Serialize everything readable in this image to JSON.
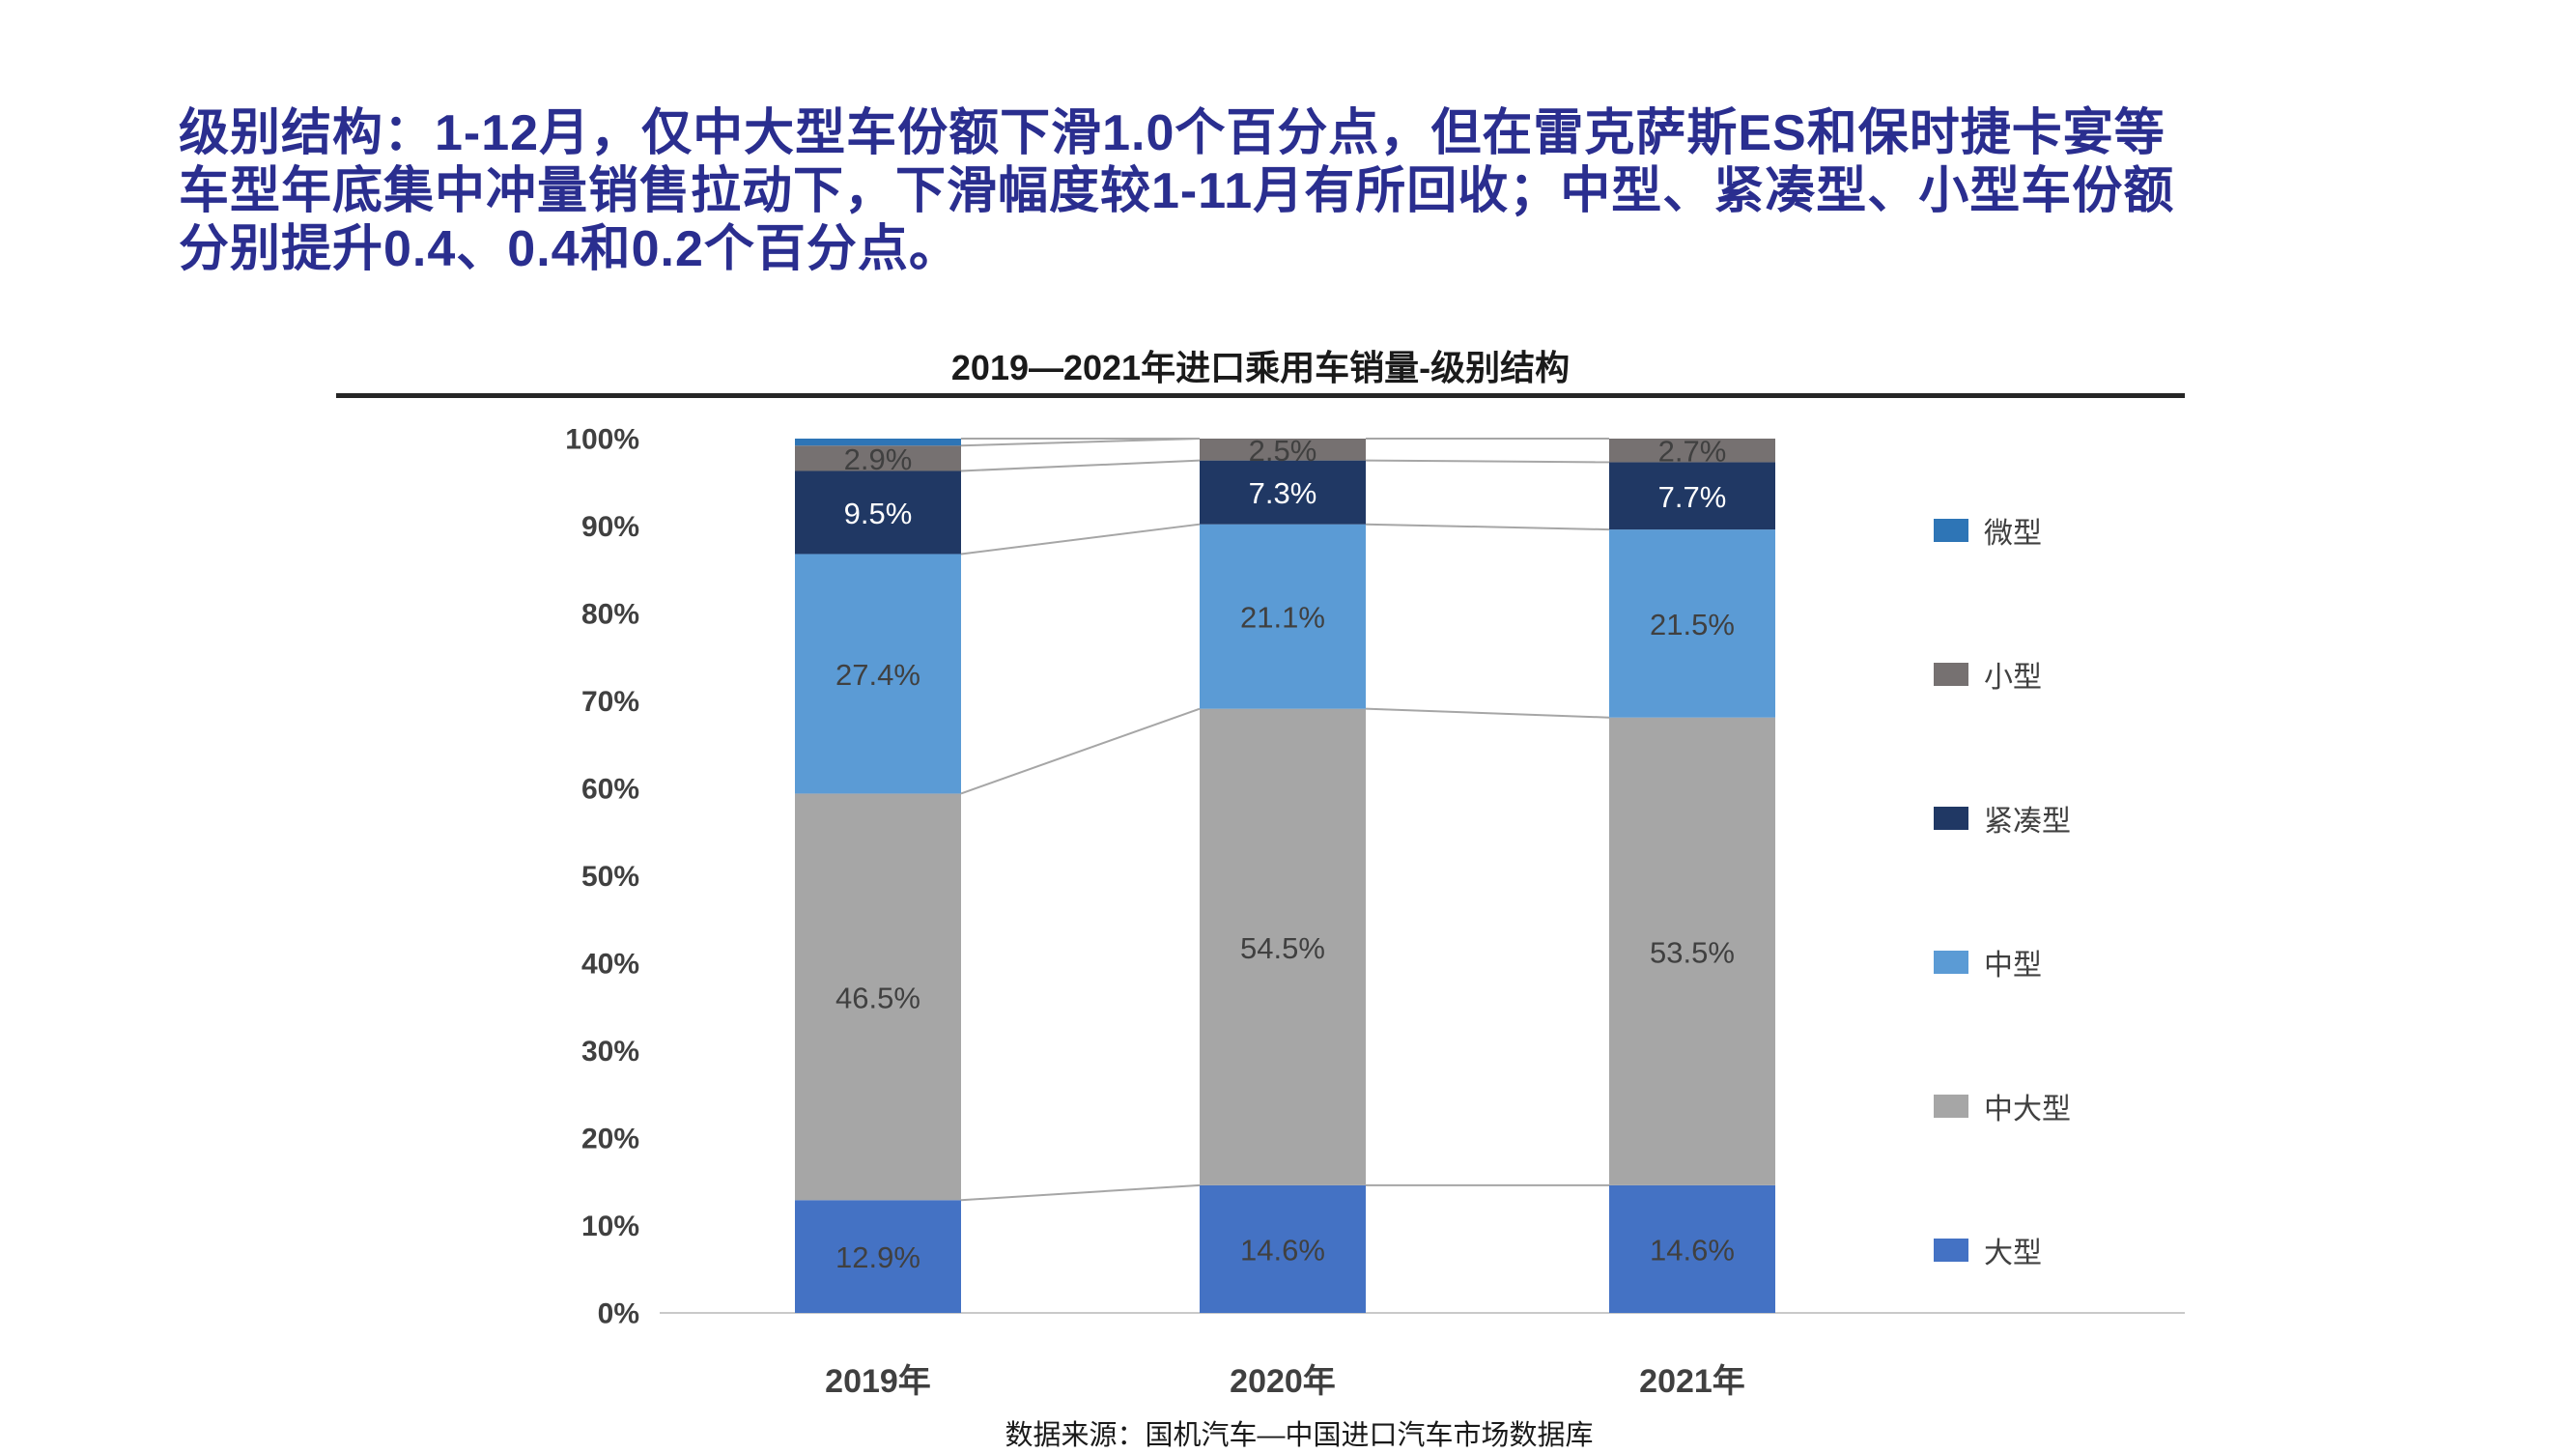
{
  "headline": {
    "lines": [
      "级别结构：1-12月，仅中大型车份额下滑1.0个百分点，但在雷克萨斯ES和保时捷卡宴等",
      "车型年底集中冲量销售拉动下，下滑幅度较1-11月有所回收；中型、紧凑型、小型车份额",
      "分别提升0.4、0.4和0.2个百分点。"
    ],
    "color": "#2A2E8F"
  },
  "source_note": "数据来源：国机汽车—中国进口汽车市场数据库",
  "chart_data": {
    "type": "bar",
    "stacked": true,
    "title": "2019—2021年进口乘用车销量-级别结构",
    "categories": [
      "2019年",
      "2020年",
      "2021年"
    ],
    "series": [
      {
        "name": "大型",
        "color": "#4472C4",
        "values": [
          12.9,
          14.6,
          14.6
        ],
        "labels": [
          "12.9%",
          "14.6%",
          "14.6%"
        ],
        "label_color": "#404040"
      },
      {
        "name": "中大型",
        "color": "#A6A6A6",
        "values": [
          46.5,
          54.5,
          53.5
        ],
        "labels": [
          "46.5%",
          "54.5%",
          "53.5%"
        ],
        "label_color": "#404040"
      },
      {
        "name": "中型",
        "color": "#5B9BD5",
        "values": [
          27.4,
          21.1,
          21.5
        ],
        "labels": [
          "27.4%",
          "21.1%",
          "21.5%"
        ],
        "label_color": "#404040"
      },
      {
        "name": "紧凑型",
        "color": "#203864",
        "values": [
          9.5,
          7.3,
          7.7
        ],
        "labels": [
          "9.5%",
          "7.3%",
          "7.7%"
        ],
        "label_color": "#FFFFFF"
      },
      {
        "name": "小型",
        "color": "#767171",
        "values": [
          2.9,
          2.5,
          2.7
        ],
        "labels": [
          "2.9%",
          "2.5%",
          "2.7%"
        ],
        "label_color": "#404040"
      },
      {
        "name": "微型",
        "color": "#2E75B6",
        "values": [
          0.8,
          0.0,
          0.0
        ],
        "labels": [
          "",
          "",
          ""
        ],
        "label_color": "#404040"
      }
    ],
    "legend_order": [
      "微型",
      "小型",
      "紧凑型",
      "中型",
      "中大型",
      "大型"
    ],
    "ylim": [
      0,
      100
    ],
    "ytick_labels": [
      "0%",
      "10%",
      "20%",
      "30%",
      "40%",
      "50%",
      "60%",
      "70%",
      "80%",
      "90%",
      "100%"
    ],
    "legend_position": "right",
    "grid": false,
    "connector_color": "#A6A6A6",
    "axis_line_color": "#C9C9C9",
    "tick_color": "#404040"
  }
}
